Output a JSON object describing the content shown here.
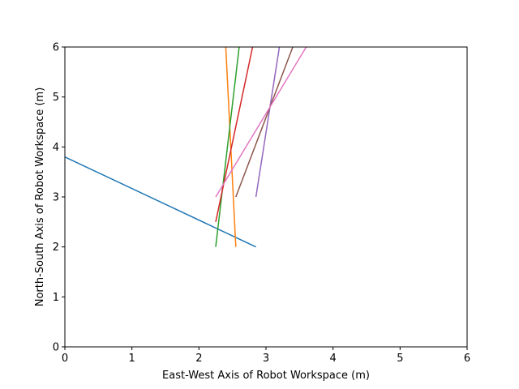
{
  "chart_data": {
    "type": "line",
    "title": "",
    "xlabel": "East-West Axis of Robot Workspace (m)",
    "ylabel": "North-South Axis of Robot Workspace (m)",
    "xlim": [
      0,
      6
    ],
    "ylim": [
      0,
      6
    ],
    "xticks": [
      "0",
      "1",
      "2",
      "3",
      "4",
      "5",
      "6"
    ],
    "yticks": [
      "0",
      "1",
      "2",
      "3",
      "4",
      "5",
      "6"
    ],
    "grid": false,
    "legend": "none",
    "series": [
      {
        "color": "#1f77b4",
        "points": [
          [
            0.0,
            3.8
          ],
          [
            2.85,
            2.0
          ]
        ]
      },
      {
        "color": "#ff7f0e",
        "points": [
          [
            2.55,
            2.0
          ],
          [
            2.4,
            6.0
          ]
        ]
      },
      {
        "color": "#2ca02c",
        "points": [
          [
            2.25,
            2.0
          ],
          [
            2.6,
            6.0
          ]
        ]
      },
      {
        "color": "#d62728",
        "points": [
          [
            2.25,
            2.5
          ],
          [
            2.8,
            6.0
          ]
        ]
      },
      {
        "color": "#9467bd",
        "points": [
          [
            2.85,
            3.0
          ],
          [
            3.2,
            6.0
          ]
        ]
      },
      {
        "color": "#8c564b",
        "points": [
          [
            2.55,
            3.0
          ],
          [
            3.4,
            6.0
          ]
        ]
      },
      {
        "color": "#e377c2",
        "points": [
          [
            2.25,
            3.0
          ],
          [
            3.6,
            6.0
          ]
        ]
      }
    ]
  }
}
